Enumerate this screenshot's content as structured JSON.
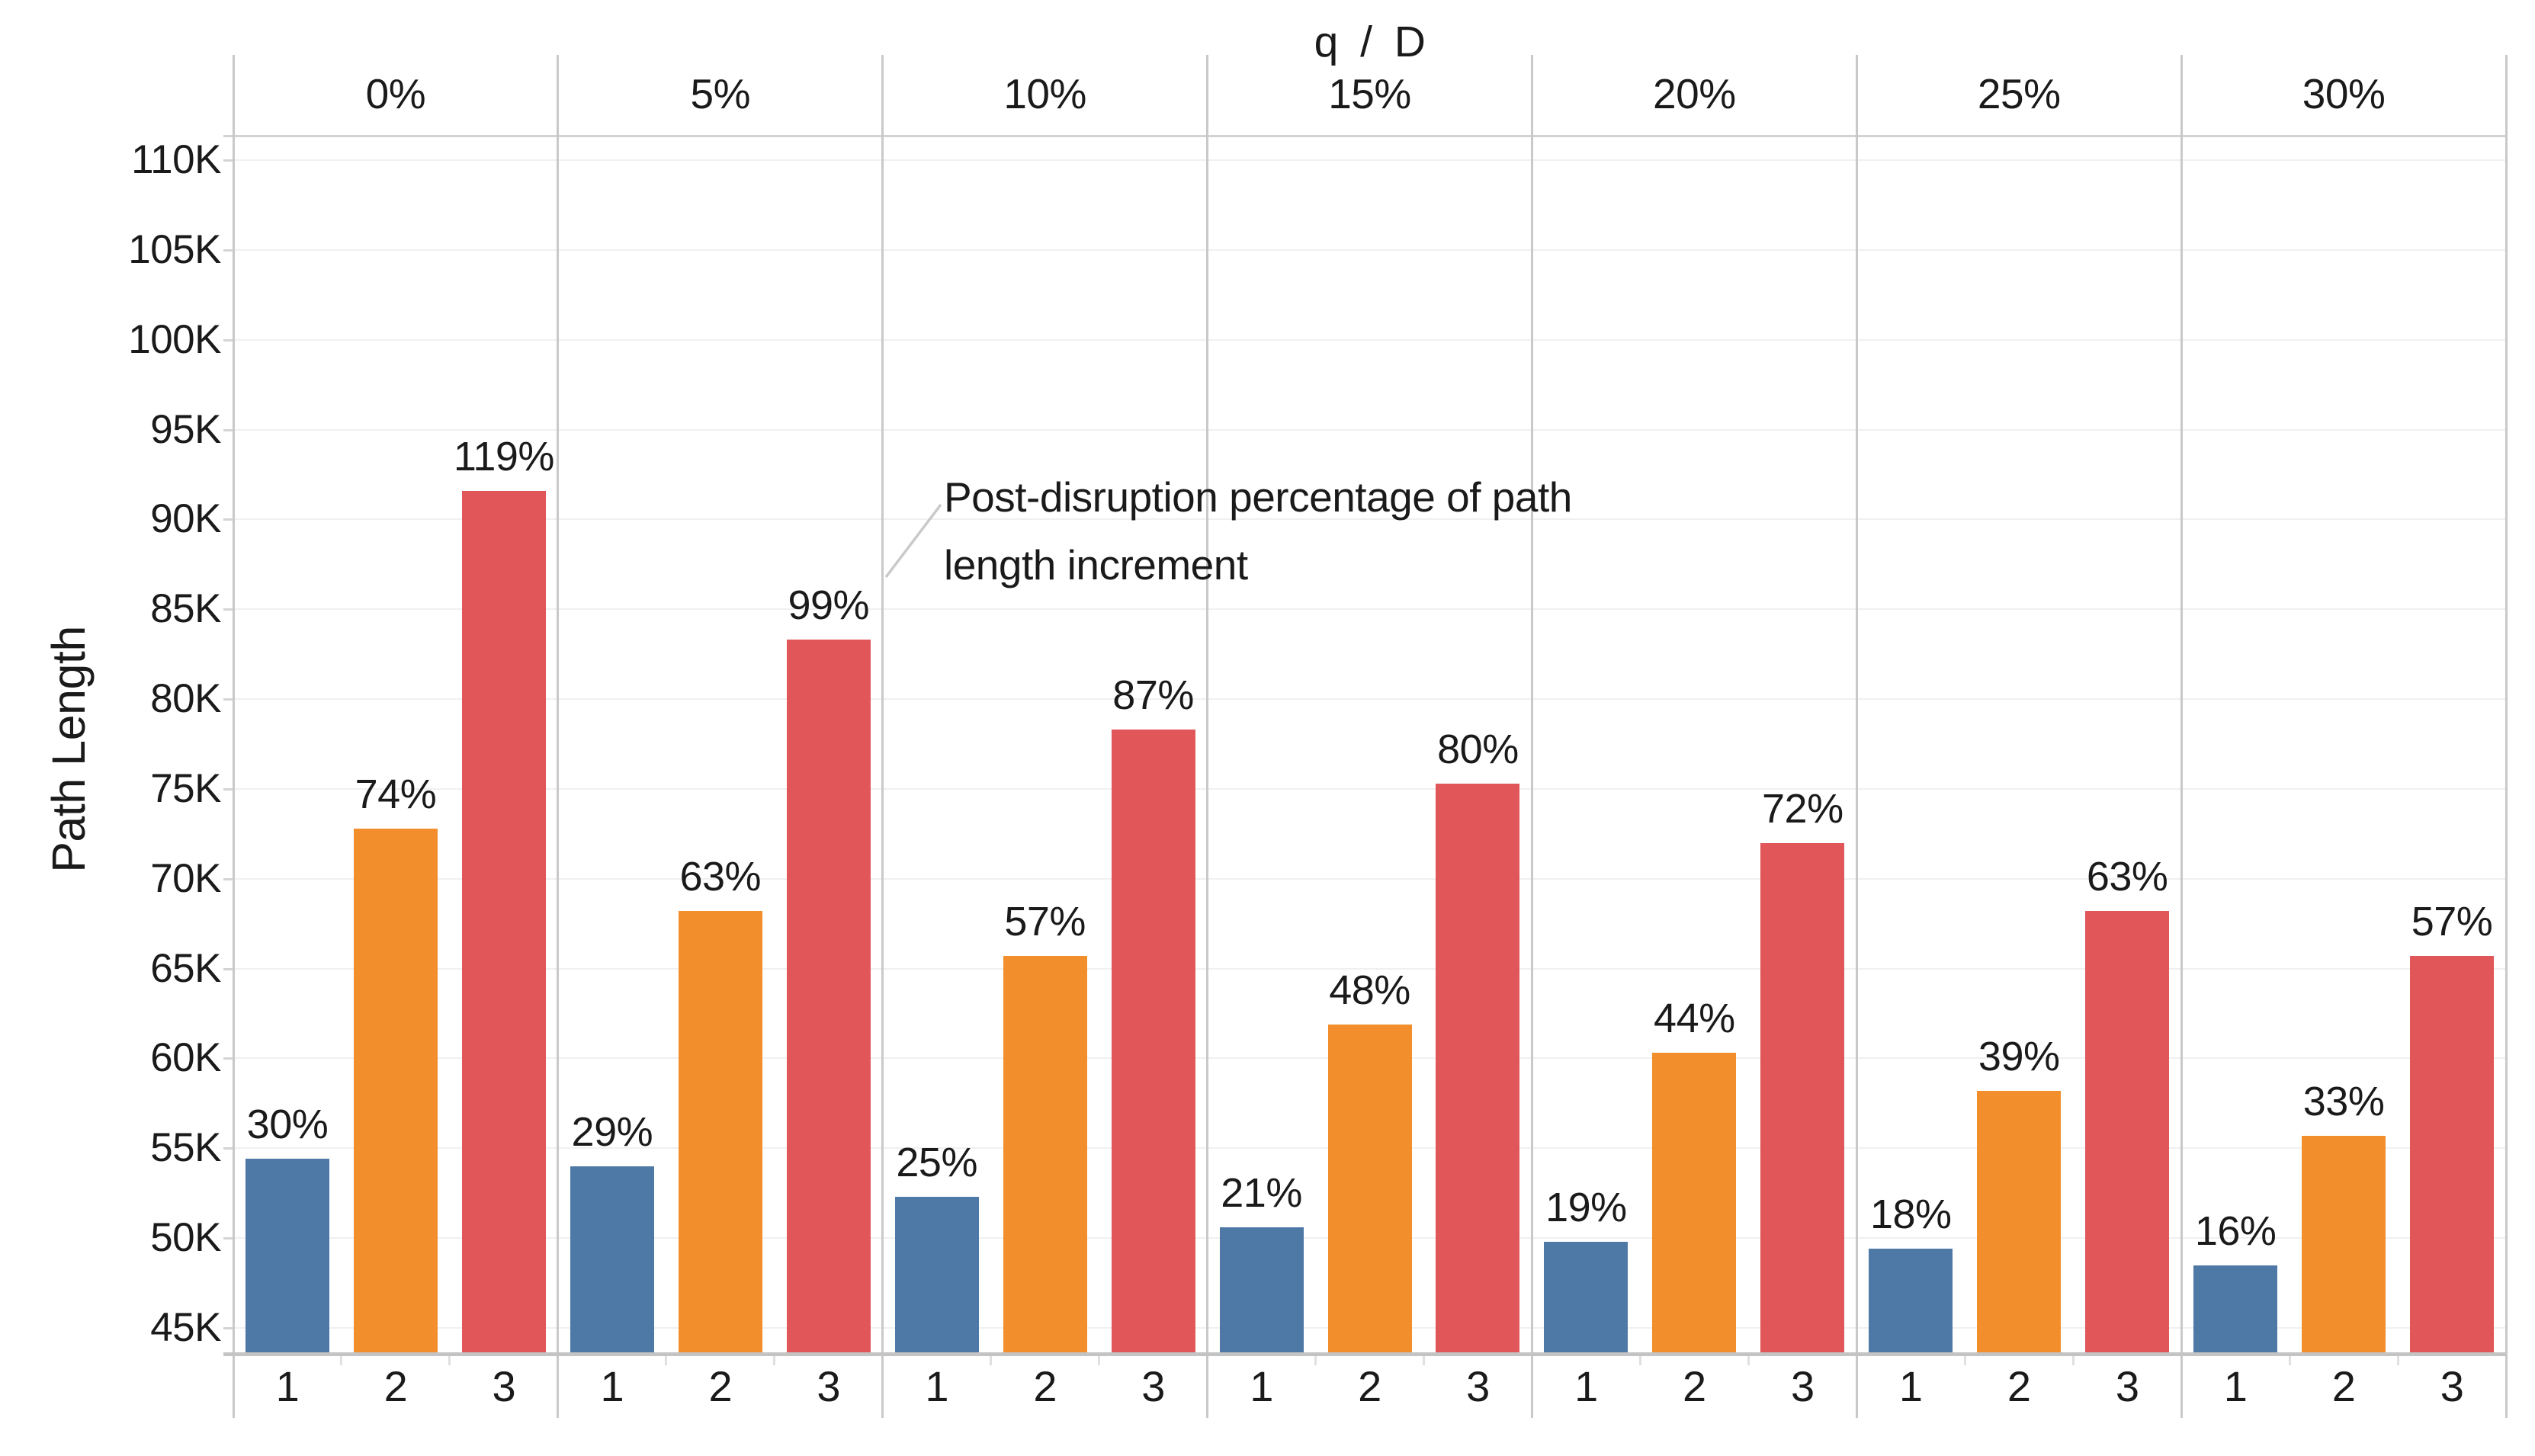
{
  "chart_data": {
    "type": "bar",
    "facet_title": "q / D",
    "ylabel": "Path Length",
    "x_tick_labels": [
      "1",
      "2",
      "3"
    ],
    "y_grid_values": [
      45000,
      50000,
      55000,
      60000,
      65000,
      70000,
      75000,
      80000,
      85000,
      90000,
      95000,
      100000,
      105000,
      110000
    ],
    "y_tick_labels": [
      "45K",
      "50K",
      "55K",
      "60K",
      "65K",
      "70K",
      "75K",
      "80K",
      "85K",
      "90K",
      "95K",
      "100K",
      "105K",
      "110K"
    ],
    "y_domain": [
      43600,
      111400
    ],
    "legend_position": "none",
    "grid": "horizontal",
    "series_colors": {
      "1": "#4e79a7",
      "2": "#f28e2b",
      "3": "#e15759"
    },
    "facets": [
      {
        "label": "0%",
        "bars": [
          {
            "x": "1",
            "value": 54400,
            "pct_label": "30%"
          },
          {
            "x": "2",
            "value": 72800,
            "pct_label": "74%"
          },
          {
            "x": "3",
            "value": 91600,
            "pct_label": "119%"
          }
        ]
      },
      {
        "label": "5%",
        "bars": [
          {
            "x": "1",
            "value": 54000,
            "pct_label": "29%"
          },
          {
            "x": "2",
            "value": 68200,
            "pct_label": "63%"
          },
          {
            "x": "3",
            "value": 83300,
            "pct_label": "99%"
          }
        ]
      },
      {
        "label": "10%",
        "bars": [
          {
            "x": "1",
            "value": 52300,
            "pct_label": "25%"
          },
          {
            "x": "2",
            "value": 65700,
            "pct_label": "57%"
          },
          {
            "x": "3",
            "value": 78300,
            "pct_label": "87%"
          }
        ]
      },
      {
        "label": "15%",
        "bars": [
          {
            "x": "1",
            "value": 50600,
            "pct_label": "21%"
          },
          {
            "x": "2",
            "value": 61900,
            "pct_label": "48%"
          },
          {
            "x": "3",
            "value": 75300,
            "pct_label": "80%"
          }
        ]
      },
      {
        "label": "20%",
        "bars": [
          {
            "x": "1",
            "value": 49800,
            "pct_label": "19%"
          },
          {
            "x": "2",
            "value": 60300,
            "pct_label": "44%"
          },
          {
            "x": "3",
            "value": 72000,
            "pct_label": "72%"
          }
        ]
      },
      {
        "label": "25%",
        "bars": [
          {
            "x": "1",
            "value": 49400,
            "pct_label": "18%"
          },
          {
            "x": "2",
            "value": 58200,
            "pct_label": "39%"
          },
          {
            "x": "3",
            "value": 68200,
            "pct_label": "63%"
          }
        ]
      },
      {
        "label": "30%",
        "bars": [
          {
            "x": "1",
            "value": 48500,
            "pct_label": "16%"
          },
          {
            "x": "2",
            "value": 55700,
            "pct_label": "33%"
          },
          {
            "x": "3",
            "value": 65700,
            "pct_label": "57%"
          }
        ]
      }
    ],
    "annotation": {
      "line1": "Post-disruption percentage of path",
      "line2": "length increment",
      "leader_color": "#c9c9c9"
    },
    "colors": {
      "gridline": "#f0f0f0",
      "facet_separator": "#c9c9c9",
      "baseline": "#c4c4c4",
      "plot_border_top": "#d2d2d2",
      "text": "#1a1a1a"
    }
  }
}
